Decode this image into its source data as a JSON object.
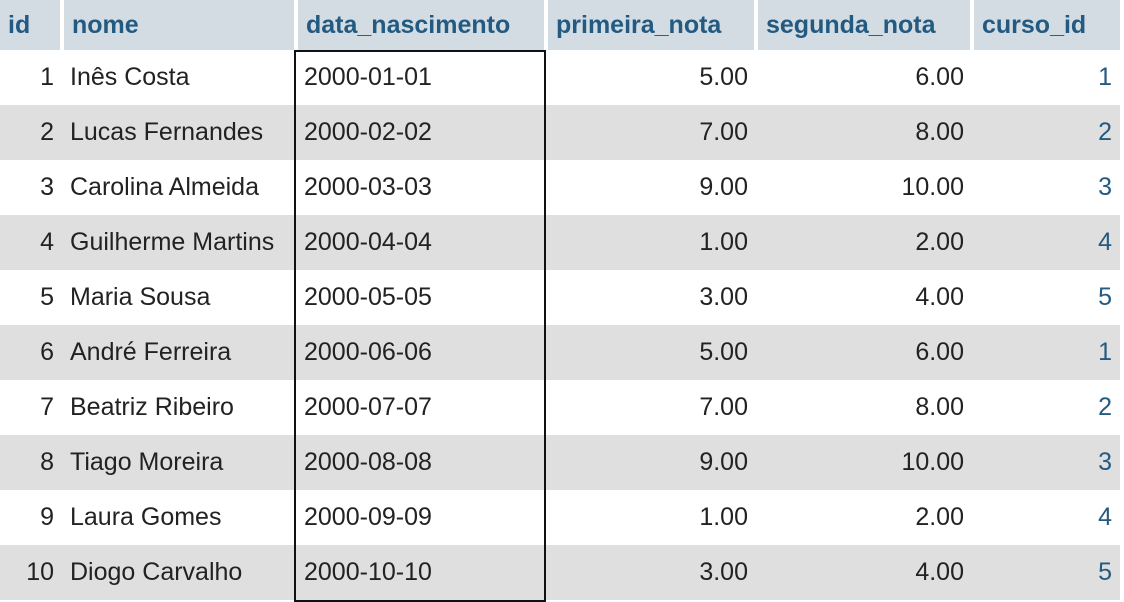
{
  "table": {
    "columns": [
      "id",
      "nome",
      "data_nascimento",
      "primeira_nota",
      "segunda_nota",
      "curso_id"
    ],
    "rows": [
      {
        "id": "1",
        "nome": "Inês Costa",
        "data_nascimento": "2000-01-01",
        "primeira_nota": "5.00",
        "segunda_nota": "6.00",
        "curso_id": "1"
      },
      {
        "id": "2",
        "nome": "Lucas Fernandes",
        "data_nascimento": "2000-02-02",
        "primeira_nota": "7.00",
        "segunda_nota": "8.00",
        "curso_id": "2"
      },
      {
        "id": "3",
        "nome": "Carolina Almeida",
        "data_nascimento": "2000-03-03",
        "primeira_nota": "9.00",
        "segunda_nota": "10.00",
        "curso_id": "3"
      },
      {
        "id": "4",
        "nome": "Guilherme Martins",
        "data_nascimento": "2000-04-04",
        "primeira_nota": "1.00",
        "segunda_nota": "2.00",
        "curso_id": "4"
      },
      {
        "id": "5",
        "nome": "Maria Sousa",
        "data_nascimento": "2000-05-05",
        "primeira_nota": "3.00",
        "segunda_nota": "4.00",
        "curso_id": "5"
      },
      {
        "id": "6",
        "nome": "André Ferreira",
        "data_nascimento": "2000-06-06",
        "primeira_nota": "5.00",
        "segunda_nota": "6.00",
        "curso_id": "1"
      },
      {
        "id": "7",
        "nome": "Beatriz Ribeiro",
        "data_nascimento": "2000-07-07",
        "primeira_nota": "7.00",
        "segunda_nota": "8.00",
        "curso_id": "2"
      },
      {
        "id": "8",
        "nome": "Tiago Moreira",
        "data_nascimento": "2000-08-08",
        "primeira_nota": "9.00",
        "segunda_nota": "10.00",
        "curso_id": "3"
      },
      {
        "id": "9",
        "nome": "Laura Gomes",
        "data_nascimento": "2000-09-09",
        "primeira_nota": "1.00",
        "segunda_nota": "2.00",
        "curso_id": "4"
      },
      {
        "id": "10",
        "nome": "Diogo Carvalho",
        "data_nascimento": "2000-10-10",
        "primeira_nota": "3.00",
        "segunda_nota": "4.00",
        "curso_id": "5"
      }
    ]
  },
  "colors": {
    "header_bg": "#d3dce3",
    "header_text": "#235a81",
    "row_even_bg": "#dfdfdf",
    "row_odd_bg": "#ffffff",
    "link_text": "#235a81",
    "selection_border": "#111111"
  }
}
